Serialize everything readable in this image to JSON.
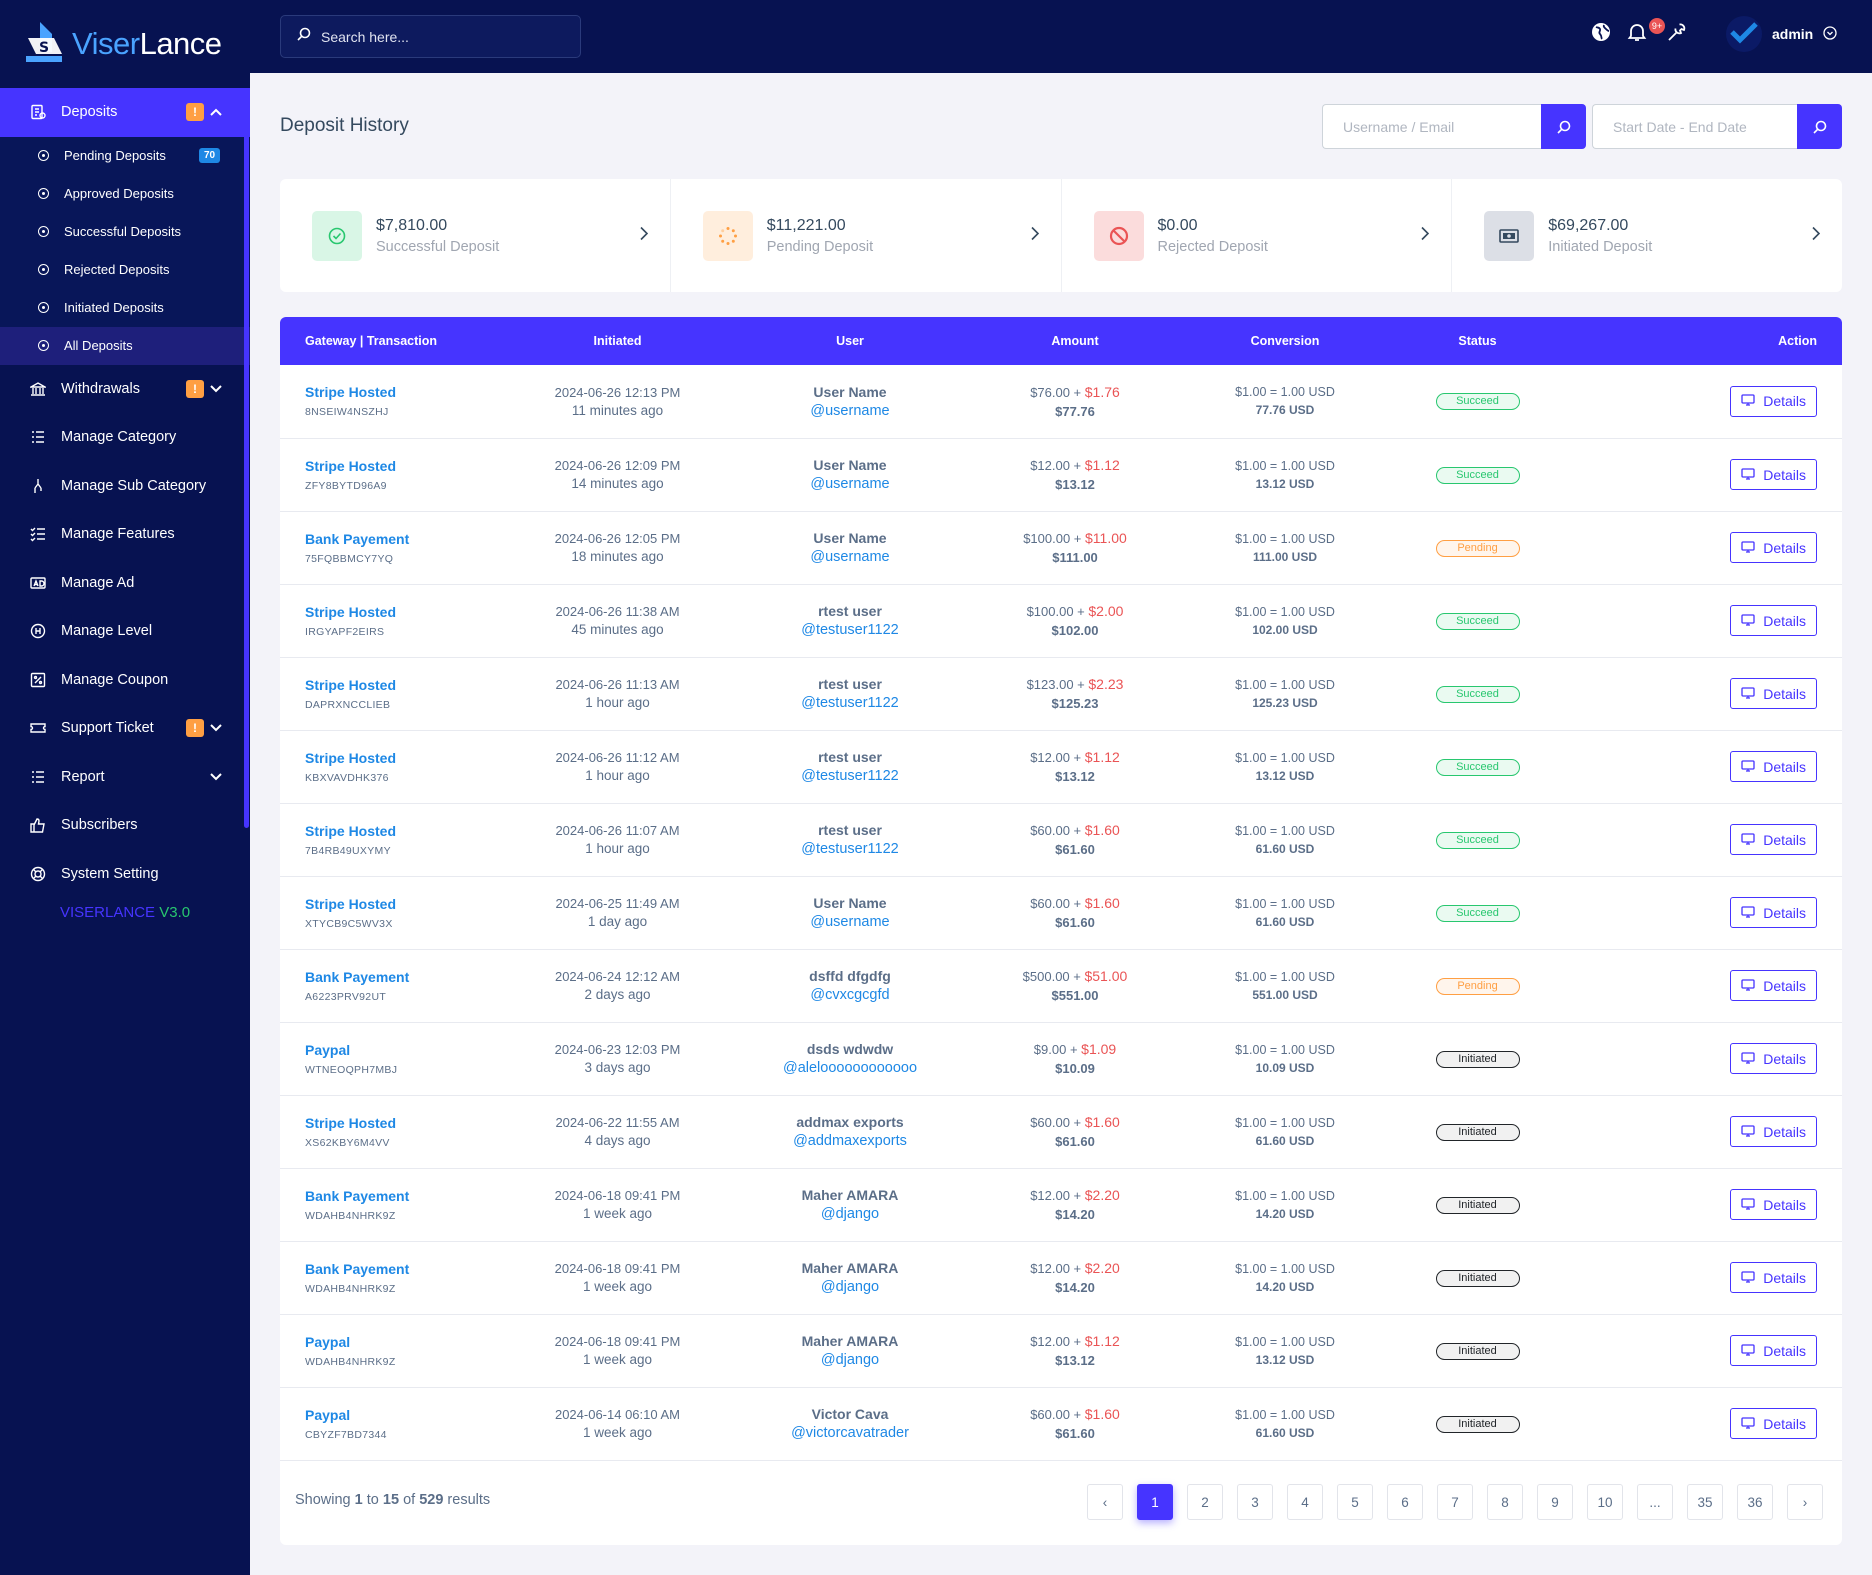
{
  "brand": {
    "name_part1": "Viser",
    "name_part2": "Lance"
  },
  "version": {
    "part1": "VISERLANCE",
    "part2": "V3.0"
  },
  "sidebar": {
    "deposits": {
      "label": "Deposits",
      "warn": "!"
    },
    "deposit_sub": [
      {
        "label": "Pending Deposits",
        "count": "70"
      },
      {
        "label": "Approved Deposits"
      },
      {
        "label": "Successful Deposits"
      },
      {
        "label": "Rejected Deposits"
      },
      {
        "label": "Initiated Deposits"
      },
      {
        "label": "All Deposits"
      }
    ],
    "items": [
      {
        "label": "Withdrawals",
        "warn": "!"
      },
      {
        "label": "Manage Category"
      },
      {
        "label": "Manage Sub Category"
      },
      {
        "label": "Manage Features"
      },
      {
        "label": "Manage Ad"
      },
      {
        "label": "Manage Level"
      },
      {
        "label": "Manage Coupon"
      },
      {
        "label": "Support Ticket",
        "warn": "!"
      },
      {
        "label": "Report"
      },
      {
        "label": "Subscribers"
      },
      {
        "label": "System Setting"
      }
    ]
  },
  "header": {
    "search_placeholder": "Search here...",
    "notif_count": "9+",
    "user": "admin"
  },
  "page": {
    "title": "Deposit History",
    "filter_user_placeholder": "Username / Email",
    "filter_date_placeholder": "Start Date - End Date"
  },
  "widgets": [
    {
      "amount": "$7,810.00",
      "label": "Successful Deposit",
      "color": "#28c76f",
      "bg": "#d9f6e6",
      "icon": "check-circle-icon"
    },
    {
      "amount": "$11,221.00",
      "label": "Pending Deposit",
      "color": "#ff9f43",
      "bg": "#ffeedd",
      "icon": "spinner-icon"
    },
    {
      "amount": "$0.00",
      "label": "Rejected Deposit",
      "color": "#ea5455",
      "bg": "#fbdcdc",
      "icon": "ban-icon"
    },
    {
      "amount": "$69,267.00",
      "label": "Initiated Deposit",
      "color": "#34495e",
      "bg": "#dcdfe6",
      "icon": "money-icon"
    }
  ],
  "table": {
    "headers": [
      "Gateway | Transaction",
      "Initiated",
      "User",
      "Amount",
      "Conversion",
      "Status",
      "Action"
    ],
    "action_label": "Details",
    "rows": [
      {
        "gateway": "Stripe Hosted",
        "trx": "8NSEIW4NSZHJ",
        "date": "2024-06-26 12:13 PM",
        "ago": "11 minutes ago",
        "name": "User Name",
        "handle": "@username",
        "amount": "$76.00 + ",
        "fee": "$1.76",
        "total": "$77.76",
        "conv": "$1.00 = 1.00 USD",
        "conv_total": "77.76 USD",
        "status": "Succeed",
        "status_type": "succeed"
      },
      {
        "gateway": "Stripe Hosted",
        "trx": "ZFY8BYTD96A9",
        "date": "2024-06-26 12:09 PM",
        "ago": "14 minutes ago",
        "name": "User Name",
        "handle": "@username",
        "amount": "$12.00 + ",
        "fee": "$1.12",
        "total": "$13.12",
        "conv": "$1.00 = 1.00 USD",
        "conv_total": "13.12 USD",
        "status": "Succeed",
        "status_type": "succeed"
      },
      {
        "gateway": "Bank Payement",
        "trx": "75FQBBMCY7YQ",
        "date": "2024-06-26 12:05 PM",
        "ago": "18 minutes ago",
        "name": "User Name",
        "handle": "@username",
        "amount": "$100.00 + ",
        "fee": "$11.00",
        "total": "$111.00",
        "conv": "$1.00 = 1.00 USD",
        "conv_total": "111.00 USD",
        "status": "Pending",
        "status_type": "pending"
      },
      {
        "gateway": "Stripe Hosted",
        "trx": "IRGYAPF2EIRS",
        "date": "2024-06-26 11:38 AM",
        "ago": "45 minutes ago",
        "name": "rtest user",
        "handle": "@testuser1122",
        "amount": "$100.00 + ",
        "fee": "$2.00",
        "total": "$102.00",
        "conv": "$1.00 = 1.00 USD",
        "conv_total": "102.00 USD",
        "status": "Succeed",
        "status_type": "succeed"
      },
      {
        "gateway": "Stripe Hosted",
        "trx": "DAPRXNCCLIEB",
        "date": "2024-06-26 11:13 AM",
        "ago": "1 hour ago",
        "name": "rtest user",
        "handle": "@testuser1122",
        "amount": "$123.00 + ",
        "fee": "$2.23",
        "total": "$125.23",
        "conv": "$1.00 = 1.00 USD",
        "conv_total": "125.23 USD",
        "status": "Succeed",
        "status_type": "succeed"
      },
      {
        "gateway": "Stripe Hosted",
        "trx": "KBXVAVDHK376",
        "date": "2024-06-26 11:12 AM",
        "ago": "1 hour ago",
        "name": "rtest user",
        "handle": "@testuser1122",
        "amount": "$12.00 + ",
        "fee": "$1.12",
        "total": "$13.12",
        "conv": "$1.00 = 1.00 USD",
        "conv_total": "13.12 USD",
        "status": "Succeed",
        "status_type": "succeed"
      },
      {
        "gateway": "Stripe Hosted",
        "trx": "7B4RB49UXYMY",
        "date": "2024-06-26 11:07 AM",
        "ago": "1 hour ago",
        "name": "rtest user",
        "handle": "@testuser1122",
        "amount": "$60.00 + ",
        "fee": "$1.60",
        "total": "$61.60",
        "conv": "$1.00 = 1.00 USD",
        "conv_total": "61.60 USD",
        "status": "Succeed",
        "status_type": "succeed"
      },
      {
        "gateway": "Stripe Hosted",
        "trx": "XTYCB9C5WV3X",
        "date": "2024-06-25 11:49 AM",
        "ago": "1 day ago",
        "name": "User Name",
        "handle": "@username",
        "amount": "$60.00 + ",
        "fee": "$1.60",
        "total": "$61.60",
        "conv": "$1.00 = 1.00 USD",
        "conv_total": "61.60 USD",
        "status": "Succeed",
        "status_type": "succeed"
      },
      {
        "gateway": "Bank Payement",
        "trx": "A6223PRV92UT",
        "date": "2024-06-24 12:12 AM",
        "ago": "2 days ago",
        "name": "dsffd dfgdfg",
        "handle": "@cvxcgcgfd",
        "amount": "$500.00 + ",
        "fee": "$51.00",
        "total": "$551.00",
        "conv": "$1.00 = 1.00 USD",
        "conv_total": "551.00 USD",
        "status": "Pending",
        "status_type": "pending"
      },
      {
        "gateway": "Paypal",
        "trx": "WTNEOQPH7MBJ",
        "date": "2024-06-23 12:03 PM",
        "ago": "3 days ago",
        "name": "dsds wdwdw",
        "handle": "@aleloooooooooooo",
        "amount": "$9.00 + ",
        "fee": "$1.09",
        "total": "$10.09",
        "conv": "$1.00 = 1.00 USD",
        "conv_total": "10.09 USD",
        "status": "Initiated",
        "status_type": "initiated"
      },
      {
        "gateway": "Stripe Hosted",
        "trx": "XS62KBY6M4VV",
        "date": "2024-06-22 11:55 AM",
        "ago": "4 days ago",
        "name": "addmax exports",
        "handle": "@addmaxexports",
        "amount": "$60.00 + ",
        "fee": "$1.60",
        "total": "$61.60",
        "conv": "$1.00 = 1.00 USD",
        "conv_total": "61.60 USD",
        "status": "Initiated",
        "status_type": "initiated"
      },
      {
        "gateway": "Bank Payement",
        "trx": "WDAHB4NHRK9Z",
        "date": "2024-06-18 09:41 PM",
        "ago": "1 week ago",
        "name": "Maher AMARA",
        "handle": "@django",
        "amount": "$12.00 + ",
        "fee": "$2.20",
        "total": "$14.20",
        "conv": "$1.00 = 1.00 USD",
        "conv_total": "14.20 USD",
        "status": "Initiated",
        "status_type": "initiated"
      },
      {
        "gateway": "Bank Payement",
        "trx": "WDAHB4NHRK9Z",
        "date": "2024-06-18 09:41 PM",
        "ago": "1 week ago",
        "name": "Maher AMARA",
        "handle": "@django",
        "amount": "$12.00 + ",
        "fee": "$2.20",
        "total": "$14.20",
        "conv": "$1.00 = 1.00 USD",
        "conv_total": "14.20 USD",
        "status": "Initiated",
        "status_type": "initiated"
      },
      {
        "gateway": "Paypal",
        "trx": "WDAHB4NHRK9Z",
        "date": "2024-06-18 09:41 PM",
        "ago": "1 week ago",
        "name": "Maher AMARA",
        "handle": "@django",
        "amount": "$12.00 + ",
        "fee": "$1.12",
        "total": "$13.12",
        "conv": "$1.00 = 1.00 USD",
        "conv_total": "13.12 USD",
        "status": "Initiated",
        "status_type": "initiated"
      },
      {
        "gateway": "Paypal",
        "trx": "CBYZF7BD7344",
        "date": "2024-06-14 06:10 AM",
        "ago": "1 week ago",
        "name": "Victor Cava",
        "handle": "@victorcavatrader",
        "amount": "$60.00 + ",
        "fee": "$1.60",
        "total": "$61.60",
        "conv": "$1.00 = 1.00 USD",
        "conv_total": "61.60 USD",
        "status": "Initiated",
        "status_type": "initiated"
      }
    ]
  },
  "pagination": {
    "showing": "Showing",
    "from": "1",
    "to_word": "to",
    "to": "15",
    "of_word": "of",
    "total": "529",
    "results_word": "results",
    "prev": "‹",
    "next": "›",
    "pages": [
      "1",
      "2",
      "3",
      "4",
      "5",
      "6",
      "7",
      "8",
      "9",
      "10",
      "...",
      "35",
      "36"
    ],
    "current": "1"
  }
}
